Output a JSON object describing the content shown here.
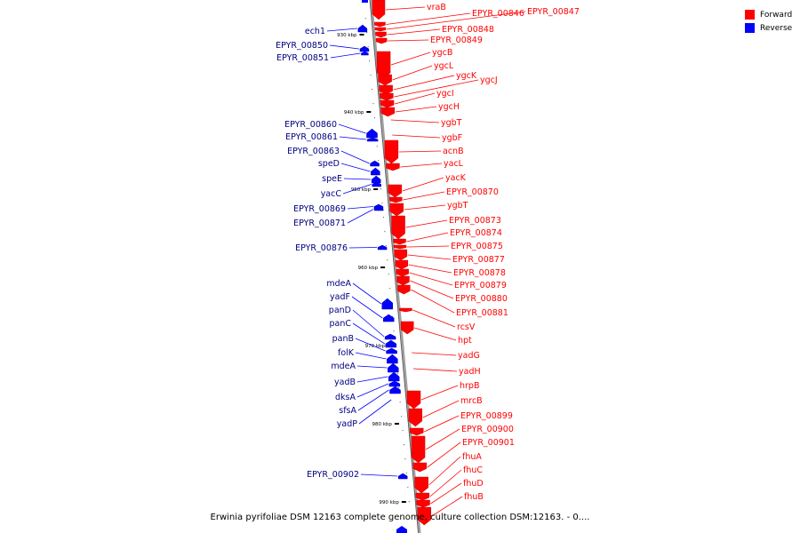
{
  "caption": "Erwinia pyrifoliae DSM 12163 complete genome, culture collection DSM:12163. - 0....",
  "legend": [
    {
      "label": "Forward",
      "color": "#ff0000"
    },
    {
      "label": "Reverse",
      "color": "#0000ff"
    }
  ],
  "colors": {
    "forward": "#ff0000",
    "reverse": "#0000ff",
    "axis": "#a0a0a0",
    "tick": "#000000"
  },
  "ticks": [
    "930 kbp",
    "940 kbp",
    "950 kbp",
    "960 kbp",
    "970 kbp",
    "980 kbp",
    "990 kbp"
  ],
  "forward_genes": [
    "vraB",
    "EPYR_00846",
    "EPYR_00847",
    "EPYR_00848",
    "EPYR_00849",
    "ygcB",
    "ygcL",
    "ygcK",
    "ygcJ",
    "ygcI",
    "ygcH",
    "ygbT",
    "ygbF",
    "acnB",
    "yacL",
    "yacK",
    "EPYR_00870",
    "ygbT",
    "EPYR_00873",
    "EPYR_00874",
    "EPYR_00875",
    "EPYR_00877",
    "EPYR_00878",
    "EPYR_00879",
    "EPYR_00880",
    "EPYR_00881",
    "rcsV",
    "hpt",
    "yadG",
    "yadH",
    "hrpB",
    "mrcB",
    "EPYR_00899",
    "EPYR_00900",
    "EPYR_00901",
    "fhuA",
    "fhuC",
    "fhuD",
    "fhuB"
  ],
  "reverse_genes": [
    "ech1",
    "EPYR_00850",
    "EPYR_00851",
    "EPYR_00860",
    "EPYR_00861",
    "EPYR_00863",
    "speD",
    "speE",
    "yacC",
    "EPYR_00869",
    "EPYR_00871",
    "EPYR_00876",
    "mdeA",
    "yadF",
    "panD",
    "panC",
    "panB",
    "folK",
    "mdeA",
    "yadB",
    "dksA",
    "sfsA",
    "yadP",
    "EPYR_00902"
  ]
}
